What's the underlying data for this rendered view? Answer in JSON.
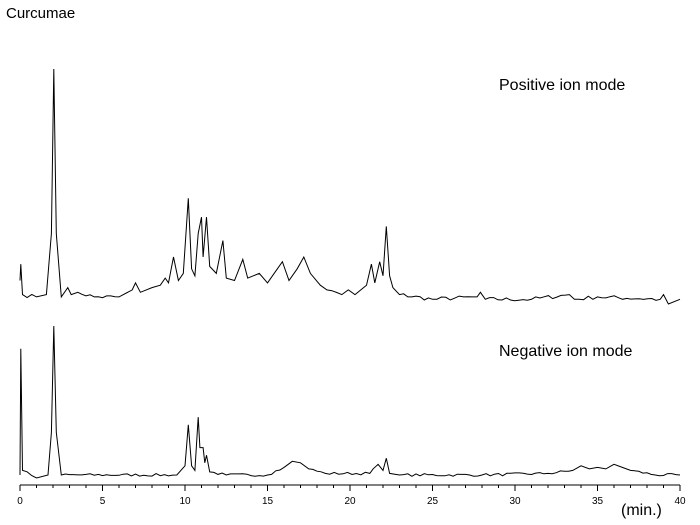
{
  "chart_data": {
    "type": "line",
    "title": "Curcumae",
    "xlabel": "(min.)",
    "ylabel": "",
    "xlim": [
      0,
      40
    ],
    "x_ticks": [
      0,
      5,
      10,
      15,
      20,
      25,
      30,
      35,
      40
    ],
    "y_axis_shown": false,
    "grid": false,
    "legend": "none",
    "line_color": "#000000",
    "series": [
      {
        "name": "Positive ion mode",
        "points": [
          [
            0,
            0.1
          ],
          [
            0.05,
            0.17
          ],
          [
            0.15,
            0.04
          ],
          [
            1,
            0.03
          ],
          [
            1.6,
            0.04
          ],
          [
            1.9,
            0.3
          ],
          [
            2.05,
            1.0
          ],
          [
            2.2,
            0.3
          ],
          [
            2.5,
            0.03
          ],
          [
            2.9,
            0.07
          ],
          [
            3.1,
            0.04
          ],
          [
            3.5,
            0.05
          ],
          [
            4.5,
            0.03
          ],
          [
            6,
            0.03
          ],
          [
            6.8,
            0.06
          ],
          [
            7.0,
            0.09
          ],
          [
            7.3,
            0.05
          ],
          [
            8.0,
            0.07
          ],
          [
            8.5,
            0.08
          ],
          [
            8.8,
            0.11
          ],
          [
            9.0,
            0.09
          ],
          [
            9.3,
            0.2
          ],
          [
            9.6,
            0.1
          ],
          [
            9.9,
            0.13
          ],
          [
            10.2,
            0.45
          ],
          [
            10.4,
            0.15
          ],
          [
            10.6,
            0.12
          ],
          [
            10.8,
            0.3
          ],
          [
            11.0,
            0.37
          ],
          [
            11.1,
            0.2
          ],
          [
            11.3,
            0.37
          ],
          [
            11.5,
            0.16
          ],
          [
            11.9,
            0.13
          ],
          [
            12.3,
            0.27
          ],
          [
            12.5,
            0.11
          ],
          [
            13.0,
            0.1
          ],
          [
            13.5,
            0.19
          ],
          [
            13.8,
            0.11
          ],
          [
            14.5,
            0.13
          ],
          [
            15.0,
            0.09
          ],
          [
            15.5,
            0.14
          ],
          [
            15.9,
            0.18
          ],
          [
            16.3,
            0.1
          ],
          [
            16.8,
            0.15
          ],
          [
            17.2,
            0.2
          ],
          [
            17.6,
            0.13
          ],
          [
            18.2,
            0.08
          ],
          [
            18.6,
            0.06
          ],
          [
            19.5,
            0.04
          ],
          [
            19.9,
            0.06
          ],
          [
            20.3,
            0.04
          ],
          [
            21.0,
            0.08
          ],
          [
            21.3,
            0.17
          ],
          [
            21.5,
            0.09
          ],
          [
            21.8,
            0.18
          ],
          [
            22.0,
            0.12
          ],
          [
            22.2,
            0.33
          ],
          [
            22.4,
            0.12
          ],
          [
            22.6,
            0.07
          ],
          [
            23.0,
            0.04
          ],
          [
            25,
            0.02
          ],
          [
            27.7,
            0.03
          ],
          [
            27.9,
            0.05
          ],
          [
            28.2,
            0.02
          ],
          [
            31,
            0.02
          ],
          [
            33.3,
            0.04
          ],
          [
            33.6,
            0.02
          ],
          [
            35,
            0.03
          ],
          [
            38.8,
            0.02
          ],
          [
            39.0,
            0.04
          ],
          [
            39.3,
            0.0
          ],
          [
            40,
            0.02
          ]
        ]
      },
      {
        "name": "Negative ion mode",
        "points": [
          [
            0,
            0.02
          ],
          [
            0.05,
            0.85
          ],
          [
            0.15,
            0.05
          ],
          [
            1,
            0.0
          ],
          [
            1.7,
            0.02
          ],
          [
            1.9,
            0.3
          ],
          [
            2.05,
            1.0
          ],
          [
            2.2,
            0.3
          ],
          [
            2.5,
            0.02
          ],
          [
            9.5,
            0.02
          ],
          [
            10.0,
            0.08
          ],
          [
            10.2,
            0.35
          ],
          [
            10.4,
            0.08
          ],
          [
            10.6,
            0.05
          ],
          [
            10.8,
            0.4
          ],
          [
            10.9,
            0.2
          ],
          [
            11.1,
            0.2
          ],
          [
            11.2,
            0.1
          ],
          [
            11.3,
            0.15
          ],
          [
            11.5,
            0.04
          ],
          [
            12.5,
            0.02
          ],
          [
            15,
            0.02
          ],
          [
            16.0,
            0.07
          ],
          [
            16.5,
            0.11
          ],
          [
            17.0,
            0.1
          ],
          [
            17.5,
            0.06
          ],
          [
            18.5,
            0.03
          ],
          [
            21.2,
            0.03
          ],
          [
            21.4,
            0.06
          ],
          [
            21.7,
            0.09
          ],
          [
            22.0,
            0.05
          ],
          [
            22.2,
            0.13
          ],
          [
            22.4,
            0.03
          ],
          [
            23.0,
            0.02
          ],
          [
            28,
            0.02
          ],
          [
            32,
            0.03
          ],
          [
            33.5,
            0.05
          ],
          [
            34.0,
            0.08
          ],
          [
            34.5,
            0.06
          ],
          [
            35.0,
            0.07
          ],
          [
            35.5,
            0.06
          ],
          [
            36.0,
            0.09
          ],
          [
            36.5,
            0.07
          ],
          [
            37.0,
            0.05
          ],
          [
            38.5,
            0.02
          ],
          [
            40,
            0.02
          ]
        ]
      }
    ]
  }
}
